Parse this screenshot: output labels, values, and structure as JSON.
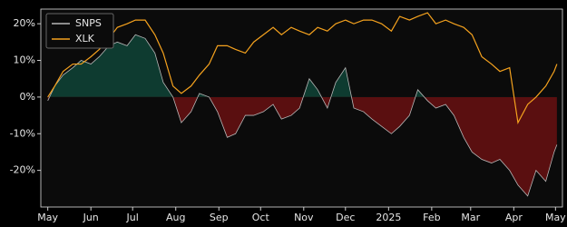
{
  "chart_data": {
    "type": "line",
    "x": [
      0,
      5,
      11,
      18,
      24,
      31,
      37,
      44,
      50,
      57,
      63,
      70,
      77,
      83,
      90,
      96,
      103,
      109,
      116,
      122,
      129,
      135,
      142,
      148,
      155,
      162,
      168,
      175,
      181,
      188,
      194,
      201,
      207,
      214,
      220,
      227,
      233,
      240,
      247,
      253,
      260,
      266,
      273,
      279,
      286,
      292,
      299,
      305,
      312,
      319,
      325,
      332,
      338,
      345,
      351,
      358,
      364,
      366
    ],
    "xlim": [
      -5,
      370
    ],
    "xticks": [
      {
        "value": 0,
        "label": "May"
      },
      {
        "value": 31,
        "label": "Jun"
      },
      {
        "value": 61,
        "label": "Jul"
      },
      {
        "value": 92,
        "label": "Aug"
      },
      {
        "value": 123,
        "label": "Sep"
      },
      {
        "value": 153,
        "label": "Oct"
      },
      {
        "value": 184,
        "label": "Nov"
      },
      {
        "value": 214,
        "label": "Dec"
      },
      {
        "value": 245,
        "label": "2025"
      },
      {
        "value": 276,
        "label": "Feb"
      },
      {
        "value": 304,
        "label": "Mar"
      },
      {
        "value": 335,
        "label": "Apr"
      },
      {
        "value": 365,
        "label": "May"
      }
    ],
    "ylim": [
      -30,
      24
    ],
    "yticks": [
      {
        "value": -20,
        "label": "-20%"
      },
      {
        "value": -10,
        "label": "-10%"
      },
      {
        "value": 0,
        "label": "0%"
      },
      {
        "value": 10,
        "label": "10%"
      },
      {
        "value": 20,
        "label": "20%"
      }
    ],
    "legend": "upper left",
    "positive_fill": "#0e3b30",
    "negative_fill": "#5a0f10",
    "series": [
      {
        "name": "SNPS",
        "color": "#b8b8b8",
        "fill_area": true,
        "values": [
          -1,
          3,
          6,
          8,
          10,
          9,
          11,
          14,
          15,
          14,
          17,
          16,
          12,
          4,
          0,
          -7,
          -4,
          1,
          0,
          -4,
          -11,
          -10,
          -5,
          -5,
          -4,
          -2,
          -6,
          -5,
          -3,
          5,
          2,
          -3,
          4,
          8,
          -3,
          -4,
          -6,
          -8,
          -10,
          -8,
          -5,
          2,
          -1,
          -3,
          -2,
          -5,
          -11,
          -15,
          -17,
          -18,
          -17,
          -20,
          -24,
          -27,
          -20,
          -23,
          -15,
          -13
        ]
      },
      {
        "name": "XLK",
        "color": "#f5a21e",
        "fill_area": false,
        "values": [
          0,
          3,
          7,
          9,
          9,
          11,
          13,
          16,
          19,
          20,
          21,
          21,
          17,
          12,
          3,
          1,
          3,
          6,
          9,
          14,
          14,
          13,
          12,
          15,
          17,
          19,
          17,
          19,
          18,
          17,
          19,
          18,
          20,
          21,
          20,
          21,
          21,
          20,
          18,
          22,
          21,
          22,
          23,
          20,
          21,
          20,
          19,
          17,
          11,
          9,
          7,
          8,
          -7,
          -2,
          0,
          3,
          7,
          9
        ]
      }
    ]
  }
}
